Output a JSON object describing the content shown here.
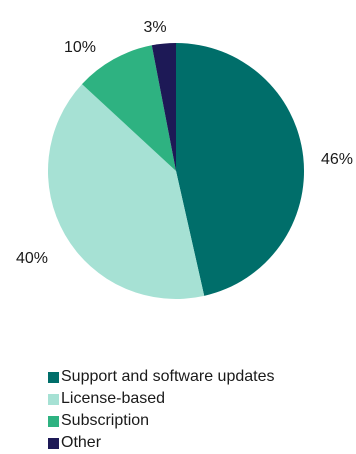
{
  "chart_data": {
    "type": "pie",
    "slices": [
      {
        "label": "Support and software updates",
        "value": 46,
        "display": "46%",
        "color": "#006e6a"
      },
      {
        "label": "License-based",
        "value": 40,
        "display": "40%",
        "color": "#a6e1d4"
      },
      {
        "label": "Subscription",
        "value": 10,
        "display": "10%",
        "color": "#2eb281"
      },
      {
        "label": "Other",
        "value": 3,
        "display": "3%",
        "color": "#1d1956"
      }
    ],
    "start": "top, clockwise",
    "legend_position": "bottom"
  }
}
